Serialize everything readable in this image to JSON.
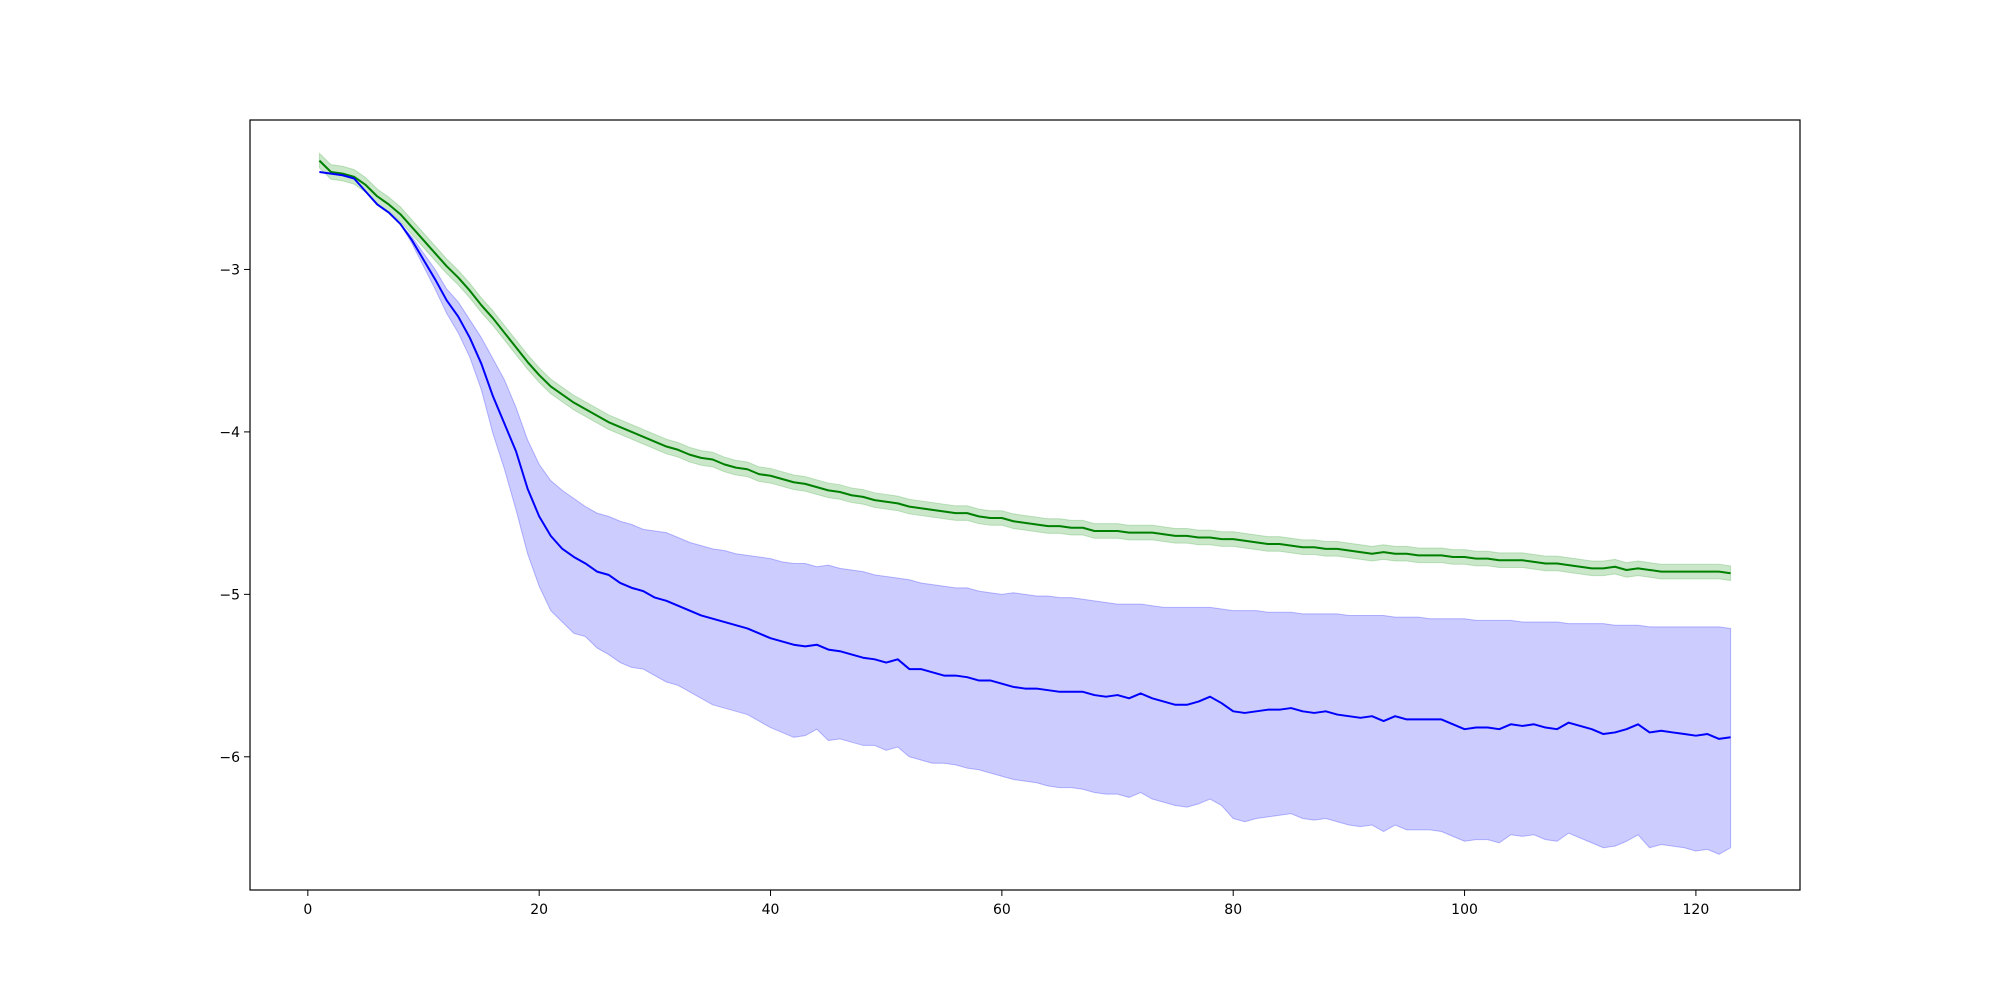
{
  "chart_data": {
    "type": "line",
    "title": "",
    "xlabel": "",
    "ylabel": "",
    "xlim": [
      -5,
      129
    ],
    "ylim": [
      -6.82,
      -2.08
    ],
    "x_ticks": [
      0,
      20,
      40,
      60,
      80,
      100,
      120
    ],
    "y_ticks": [
      -3,
      -4,
      -5,
      -6
    ],
    "x_tick_labels": [
      "0",
      "20",
      "40",
      "60",
      "80",
      "100",
      "120"
    ],
    "y_tick_labels": [
      "−3",
      "−4",
      "−5",
      "−6"
    ],
    "grid": false,
    "legend": "none",
    "x": [
      1,
      2,
      3,
      4,
      5,
      6,
      7,
      8,
      9,
      10,
      11,
      12,
      13,
      14,
      15,
      16,
      17,
      18,
      19,
      20,
      21,
      22,
      23,
      24,
      25,
      26,
      27,
      28,
      29,
      30,
      31,
      32,
      33,
      34,
      35,
      36,
      37,
      38,
      39,
      40,
      41,
      42,
      43,
      44,
      45,
      46,
      47,
      48,
      49,
      50,
      51,
      52,
      53,
      54,
      55,
      56,
      57,
      58,
      59,
      60,
      61,
      62,
      63,
      64,
      65,
      66,
      67,
      68,
      69,
      70,
      71,
      72,
      73,
      74,
      75,
      76,
      77,
      78,
      79,
      80,
      81,
      82,
      83,
      84,
      85,
      86,
      87,
      88,
      89,
      90,
      91,
      92,
      93,
      94,
      95,
      96,
      97,
      98,
      99,
      100,
      101,
      102,
      103,
      104,
      105,
      106,
      107,
      108,
      109,
      110,
      111,
      112,
      113,
      114,
      115,
      116,
      117,
      118,
      119,
      120,
      121,
      122,
      123
    ],
    "series": [
      {
        "color": "#008000",
        "band_color": "#2ca02c",
        "values": [
          -2.33,
          -2.4,
          -2.41,
          -2.43,
          -2.48,
          -2.55,
          -2.6,
          -2.66,
          -2.74,
          -2.82,
          -2.9,
          -2.98,
          -3.05,
          -3.13,
          -3.22,
          -3.3,
          -3.39,
          -3.48,
          -3.57,
          -3.65,
          -3.72,
          -3.77,
          -3.82,
          -3.86,
          -3.9,
          -3.94,
          -3.97,
          -4.0,
          -4.03,
          -4.06,
          -4.09,
          -4.11,
          -4.14,
          -4.16,
          -4.17,
          -4.2,
          -4.22,
          -4.23,
          -4.26,
          -4.27,
          -4.29,
          -4.31,
          -4.32,
          -4.34,
          -4.36,
          -4.37,
          -4.39,
          -4.4,
          -4.42,
          -4.43,
          -4.44,
          -4.46,
          -4.47,
          -4.48,
          -4.49,
          -4.5,
          -4.5,
          -4.52,
          -4.53,
          -4.53,
          -4.55,
          -4.56,
          -4.57,
          -4.58,
          -4.58,
          -4.59,
          -4.59,
          -4.61,
          -4.61,
          -4.61,
          -4.62,
          -4.62,
          -4.62,
          -4.63,
          -4.64,
          -4.64,
          -4.65,
          -4.65,
          -4.66,
          -4.66,
          -4.67,
          -4.68,
          -4.69,
          -4.69,
          -4.7,
          -4.71,
          -4.71,
          -4.72,
          -4.72,
          -4.73,
          -4.74,
          -4.75,
          -4.74,
          -4.75,
          -4.75,
          -4.76,
          -4.76,
          -4.76,
          -4.77,
          -4.77,
          -4.78,
          -4.78,
          -4.79,
          -4.79,
          -4.79,
          -4.8,
          -4.81,
          -4.81,
          -4.82,
          -4.83,
          -4.84,
          -4.84,
          -4.83,
          -4.85,
          -4.84,
          -4.85,
          -4.86,
          -4.86,
          -4.86,
          -4.86,
          -4.86,
          -4.86,
          -4.87
        ],
        "band_half_width": 0.045
      },
      {
        "color": "#0000ff",
        "band_color": "#0000ff",
        "values": [
          -2.4,
          -2.41,
          -2.42,
          -2.44,
          -2.52,
          -2.6,
          -2.65,
          -2.72,
          -2.82,
          -2.94,
          -3.06,
          -3.19,
          -3.29,
          -3.42,
          -3.58,
          -3.78,
          -3.95,
          -4.12,
          -4.35,
          -4.52,
          -4.64,
          -4.72,
          -4.77,
          -4.81,
          -4.86,
          -4.88,
          -4.93,
          -4.96,
          -4.98,
          -5.02,
          -5.04,
          -5.07,
          -5.1,
          -5.13,
          -5.15,
          -5.17,
          -5.19,
          -5.21,
          -5.24,
          -5.27,
          -5.29,
          -5.31,
          -5.32,
          -5.31,
          -5.34,
          -5.35,
          -5.37,
          -5.39,
          -5.4,
          -5.42,
          -5.4,
          -5.46,
          -5.46,
          -5.48,
          -5.5,
          -5.5,
          -5.51,
          -5.53,
          -5.53,
          -5.55,
          -5.57,
          -5.58,
          -5.58,
          -5.59,
          -5.6,
          -5.6,
          -5.6,
          -5.62,
          -5.63,
          -5.62,
          -5.64,
          -5.61,
          -5.64,
          -5.66,
          -5.68,
          -5.68,
          -5.66,
          -5.63,
          -5.67,
          -5.72,
          -5.73,
          -5.72,
          -5.71,
          -5.71,
          -5.7,
          -5.72,
          -5.73,
          -5.72,
          -5.74,
          -5.75,
          -5.76,
          -5.75,
          -5.78,
          -5.75,
          -5.77,
          -5.77,
          -5.77,
          -5.77,
          -5.8,
          -5.83,
          -5.82,
          -5.82,
          -5.83,
          -5.8,
          -5.81,
          -5.8,
          -5.82,
          -5.83,
          -5.79,
          -5.81,
          -5.83,
          -5.86,
          -5.85,
          -5.83,
          -5.8,
          -5.85,
          -5.84,
          -5.85,
          -5.86,
          -5.87,
          -5.86,
          -5.89,
          -5.88
        ],
        "band_upper": [
          -2.4,
          -2.41,
          -2.42,
          -2.44,
          -2.52,
          -2.6,
          -2.65,
          -2.72,
          -2.8,
          -2.9,
          -3.0,
          -3.12,
          -3.2,
          -3.31,
          -3.42,
          -3.55,
          -3.68,
          -3.85,
          -4.05,
          -4.2,
          -4.3,
          -4.36,
          -4.41,
          -4.46,
          -4.5,
          -4.52,
          -4.55,
          -4.57,
          -4.6,
          -4.61,
          -4.62,
          -4.65,
          -4.68,
          -4.7,
          -4.72,
          -4.73,
          -4.75,
          -4.76,
          -4.77,
          -4.78,
          -4.8,
          -4.81,
          -4.81,
          -4.83,
          -4.82,
          -4.84,
          -4.85,
          -4.86,
          -4.88,
          -4.89,
          -4.9,
          -4.91,
          -4.93,
          -4.94,
          -4.95,
          -4.96,
          -4.96,
          -4.98,
          -4.99,
          -5.0,
          -4.99,
          -5.0,
          -5.01,
          -5.01,
          -5.02,
          -5.02,
          -5.03,
          -5.04,
          -5.05,
          -5.06,
          -5.06,
          -5.06,
          -5.07,
          -5.08,
          -5.08,
          -5.08,
          -5.08,
          -5.08,
          -5.09,
          -5.1,
          -5.1,
          -5.1,
          -5.11,
          -5.11,
          -5.11,
          -5.12,
          -5.12,
          -5.12,
          -5.12,
          -5.13,
          -5.13,
          -5.13,
          -5.13,
          -5.14,
          -5.14,
          -5.14,
          -5.15,
          -5.15,
          -5.15,
          -5.15,
          -5.16,
          -5.16,
          -5.16,
          -5.16,
          -5.17,
          -5.17,
          -5.17,
          -5.17,
          -5.18,
          -5.18,
          -5.18,
          -5.18,
          -5.19,
          -5.19,
          -5.19,
          -5.2,
          -5.2,
          -5.2,
          -5.2,
          -5.2,
          -5.2,
          -5.2,
          -5.21
        ],
        "band_lower": [
          -2.4,
          -2.41,
          -2.42,
          -2.44,
          -2.52,
          -2.6,
          -2.65,
          -2.72,
          -2.84,
          -2.98,
          -3.12,
          -3.27,
          -3.39,
          -3.54,
          -3.74,
          -4.01,
          -4.23,
          -4.48,
          -4.75,
          -4.95,
          -5.1,
          -5.17,
          -5.24,
          -5.26,
          -5.33,
          -5.37,
          -5.42,
          -5.45,
          -5.46,
          -5.5,
          -5.54,
          -5.56,
          -5.6,
          -5.64,
          -5.68,
          -5.7,
          -5.72,
          -5.74,
          -5.78,
          -5.82,
          -5.85,
          -5.88,
          -5.87,
          -5.83,
          -5.9,
          -5.89,
          -5.91,
          -5.93,
          -5.93,
          -5.96,
          -5.94,
          -6.0,
          -6.02,
          -6.04,
          -6.04,
          -6.05,
          -6.07,
          -6.08,
          -6.1,
          -6.12,
          -6.14,
          -6.15,
          -6.16,
          -6.18,
          -6.19,
          -6.19,
          -6.2,
          -6.22,
          -6.23,
          -6.23,
          -6.25,
          -6.22,
          -6.26,
          -6.28,
          -6.3,
          -6.31,
          -6.29,
          -6.26,
          -6.3,
          -6.38,
          -6.4,
          -6.38,
          -6.37,
          -6.36,
          -6.35,
          -6.38,
          -6.39,
          -6.38,
          -6.4,
          -6.42,
          -6.43,
          -6.42,
          -6.46,
          -6.42,
          -6.45,
          -6.45,
          -6.45,
          -6.46,
          -6.49,
          -6.52,
          -6.51,
          -6.51,
          -6.53,
          -6.48,
          -6.49,
          -6.48,
          -6.51,
          -6.52,
          -6.47,
          -6.5,
          -6.53,
          -6.56,
          -6.55,
          -6.52,
          -6.48,
          -6.56,
          -6.54,
          -6.55,
          -6.56,
          -6.58,
          -6.57,
          -6.6,
          -6.56
        ]
      }
    ]
  }
}
